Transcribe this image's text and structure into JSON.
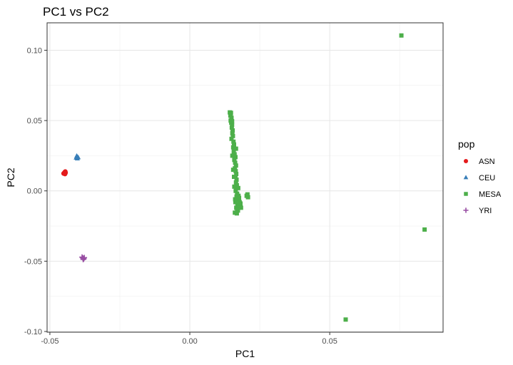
{
  "chart_data": {
    "type": "scatter",
    "title": "PC1 vs PC2",
    "xlabel": "PC1",
    "ylabel": "PC2",
    "xlim": [
      -0.051,
      0.0905
    ],
    "ylim": [
      -0.1005,
      0.1195
    ],
    "x_ticks": [
      -0.05,
      0.0,
      0.05
    ],
    "x_tick_labels": [
      "-0.05",
      "0.00",
      "0.05"
    ],
    "y_ticks": [
      -0.1,
      -0.05,
      0.0,
      0.05,
      0.1
    ],
    "y_tick_labels": [
      "-0.10",
      "-0.05",
      "0.00",
      "0.05",
      "0.10"
    ],
    "grid": true,
    "legend": {
      "title": "pop",
      "position": "right"
    },
    "series": [
      {
        "name": "ASN",
        "color": "#E41A1C",
        "shape": "circle",
        "points": [
          [
            -0.0447,
            0.0133
          ],
          [
            -0.0449,
            0.0127
          ],
          [
            -0.0444,
            0.0129
          ],
          [
            -0.0446,
            0.012
          ],
          [
            -0.0451,
            0.0124
          ],
          [
            -0.0445,
            0.0137
          ]
        ]
      },
      {
        "name": "CEU",
        "color": "#377EB8",
        "shape": "triangle",
        "points": [
          [
            -0.0403,
            0.0243
          ],
          [
            -0.0406,
            0.0236
          ],
          [
            -0.0399,
            0.0238
          ],
          [
            -0.0402,
            0.023
          ],
          [
            -0.0404,
            0.0248
          ]
        ]
      },
      {
        "name": "MESA",
        "color": "#4DAF4A",
        "shape": "square",
        "points": [
          [
            0.0143,
            0.0558
          ],
          [
            0.0147,
            0.0555
          ],
          [
            0.0145,
            0.0535
          ],
          [
            0.0149,
            0.052
          ],
          [
            0.0146,
            0.05
          ],
          [
            0.0148,
            0.0485
          ],
          [
            0.0151,
            0.047
          ],
          [
            0.015,
            0.045
          ],
          [
            0.0153,
            0.043
          ],
          [
            0.0152,
            0.041
          ],
          [
            0.0154,
            0.039
          ],
          [
            0.0149,
            0.037
          ],
          [
            0.0156,
            0.035
          ],
          [
            0.0158,
            0.033
          ],
          [
            0.0155,
            0.031
          ],
          [
            0.0161,
            0.03
          ],
          [
            0.0157,
            0.028
          ],
          [
            0.016,
            0.026
          ],
          [
            0.0163,
            0.024
          ],
          [
            0.0159,
            0.022
          ],
          [
            0.0162,
            0.02
          ],
          [
            0.0165,
            0.018
          ],
          [
            0.0161,
            0.016
          ],
          [
            0.0164,
            0.014
          ],
          [
            0.0166,
            0.012
          ],
          [
            0.0163,
            0.01
          ],
          [
            0.0167,
            0.008
          ],
          [
            0.0165,
            0.006
          ],
          [
            0.0168,
            0.004
          ],
          [
            0.0166,
            0.002
          ],
          [
            0.0164,
            0.0
          ],
          [
            0.0169,
            -0.002
          ],
          [
            0.0167,
            -0.004
          ],
          [
            0.0171,
            -0.006
          ],
          [
            0.0163,
            -0.008
          ],
          [
            0.017,
            -0.01
          ],
          [
            0.0166,
            -0.012
          ],
          [
            0.0172,
            -0.014
          ],
          [
            0.0168,
            -0.016
          ],
          [
            0.0161,
            -0.0155
          ],
          [
            0.0175,
            -0.012
          ],
          [
            0.0178,
            -0.008
          ],
          [
            0.0174,
            -0.0035
          ],
          [
            0.0162,
            -0.006
          ],
          [
            0.0173,
            0.002
          ],
          [
            0.0159,
            0.003
          ],
          [
            0.0169,
            -0.013
          ],
          [
            0.0177,
            -0.0105
          ],
          [
            0.0152,
            0.025
          ],
          [
            0.0155,
            0.015
          ],
          [
            0.0165,
            0.03
          ],
          [
            0.0158,
            0.01
          ],
          [
            0.0176,
            -0.005
          ],
          [
            0.0181,
            -0.009
          ],
          [
            0.0183,
            -0.012
          ],
          [
            0.0206,
            -0.0025
          ],
          [
            0.0203,
            -0.0035
          ],
          [
            0.0208,
            -0.0045
          ],
          [
            0.0146,
            0.0545
          ],
          [
            0.0151,
            0.0495
          ],
          [
            0.0557,
            -0.0915
          ],
          [
            0.0756,
            0.1105
          ],
          [
            0.0839,
            -0.0275
          ]
        ]
      },
      {
        "name": "YRI",
        "color": "#984EA3",
        "shape": "plus",
        "points": [
          [
            -0.0382,
            -0.0478
          ],
          [
            -0.0379,
            -0.0483
          ],
          [
            -0.0385,
            -0.0471
          ],
          [
            -0.0381,
            -0.0488
          ],
          [
            -0.0377,
            -0.0475
          ]
        ]
      }
    ]
  }
}
